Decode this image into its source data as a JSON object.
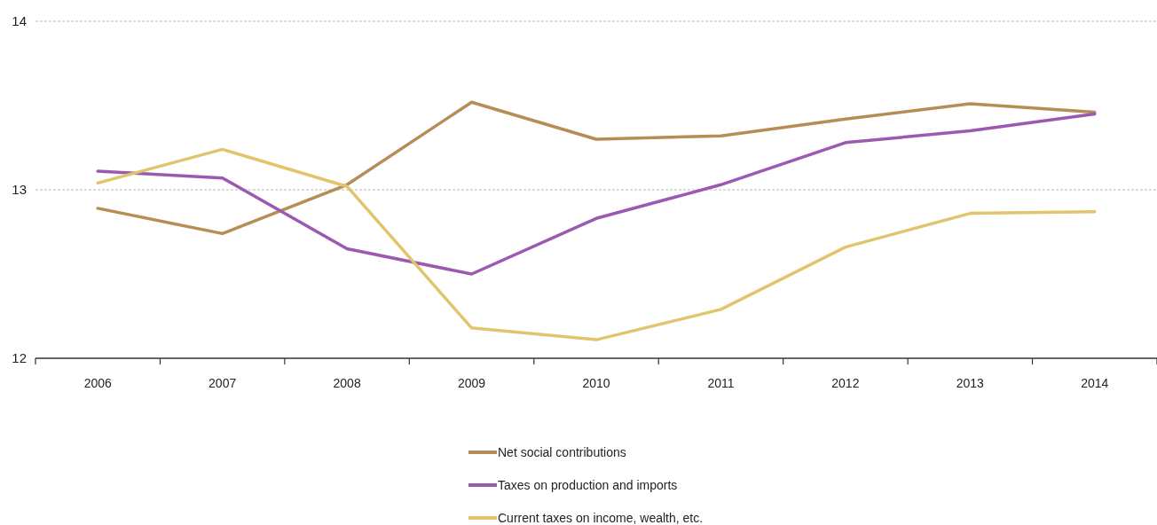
{
  "chart_data": {
    "type": "line",
    "categories": [
      "2006",
      "2007",
      "2008",
      "2009",
      "2010",
      "2011",
      "2012",
      "2013",
      "2014"
    ],
    "series": [
      {
        "name": "Net social contributions",
        "color": "#b68e55",
        "values": [
          12.89,
          12.74,
          13.03,
          13.52,
          13.3,
          13.32,
          13.42,
          13.51,
          13.46
        ]
      },
      {
        "name": "Taxes on production and imports",
        "color": "#9b59b0",
        "values": [
          13.11,
          13.07,
          12.65,
          12.5,
          12.83,
          13.03,
          13.28,
          13.35,
          13.45
        ]
      },
      {
        "name": "Current taxes on income, wealth, etc.",
        "color": "#e2c46c",
        "values": [
          13.04,
          13.24,
          13.02,
          12.18,
          12.11,
          12.29,
          12.66,
          12.86,
          12.87
        ]
      }
    ],
    "ylim": [
      12,
      14
    ],
    "yticks": [
      12,
      13,
      14
    ],
    "grid": "y",
    "legend": "bottom",
    "line_style": "solid",
    "marker": "none"
  }
}
